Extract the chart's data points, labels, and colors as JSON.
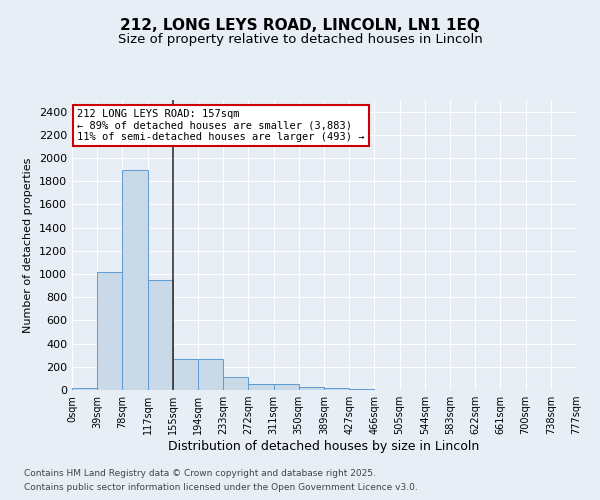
{
  "title_line1": "212, LONG LEYS ROAD, LINCOLN, LN1 1EQ",
  "title_line2": "Size of property relative to detached houses in Lincoln",
  "xlabel": "Distribution of detached houses by size in Lincoln",
  "ylabel": "Number of detached properties",
  "footer_line1": "Contains HM Land Registry data © Crown copyright and database right 2025.",
  "footer_line2": "Contains public sector information licensed under the Open Government Licence v3.0.",
  "annotation_title": "212 LONG LEYS ROAD: 157sqm",
  "annotation_line1": "← 89% of detached houses are smaller (3,883)",
  "annotation_line2": "11% of semi-detached houses are larger (493) →",
  "bar_color": "#c9d9e8",
  "bar_edge_color": "#5b9bd5",
  "marker_line_color": "#333333",
  "background_color": "#e8eef5",
  "annotation_box_color": "#ffffff",
  "annotation_border_color": "#cc0000",
  "grid_color": "#ffffff",
  "ylim": [
    0,
    2500
  ],
  "yticks": [
    0,
    200,
    400,
    600,
    800,
    1000,
    1200,
    1400,
    1600,
    1800,
    2000,
    2200,
    2400
  ],
  "bin_labels": [
    "0sqm",
    "39sqm",
    "78sqm",
    "117sqm",
    "155sqm",
    "194sqm",
    "233sqm",
    "272sqm",
    "311sqm",
    "350sqm",
    "389sqm",
    "427sqm",
    "466sqm",
    "505sqm",
    "544sqm",
    "583sqm",
    "622sqm",
    "661sqm",
    "700sqm",
    "738sqm",
    "777sqm"
  ],
  "bar_heights": [
    20,
    1020,
    1900,
    950,
    270,
    270,
    110,
    55,
    50,
    30,
    20,
    5,
    0,
    0,
    0,
    0,
    0,
    0,
    0,
    0
  ]
}
